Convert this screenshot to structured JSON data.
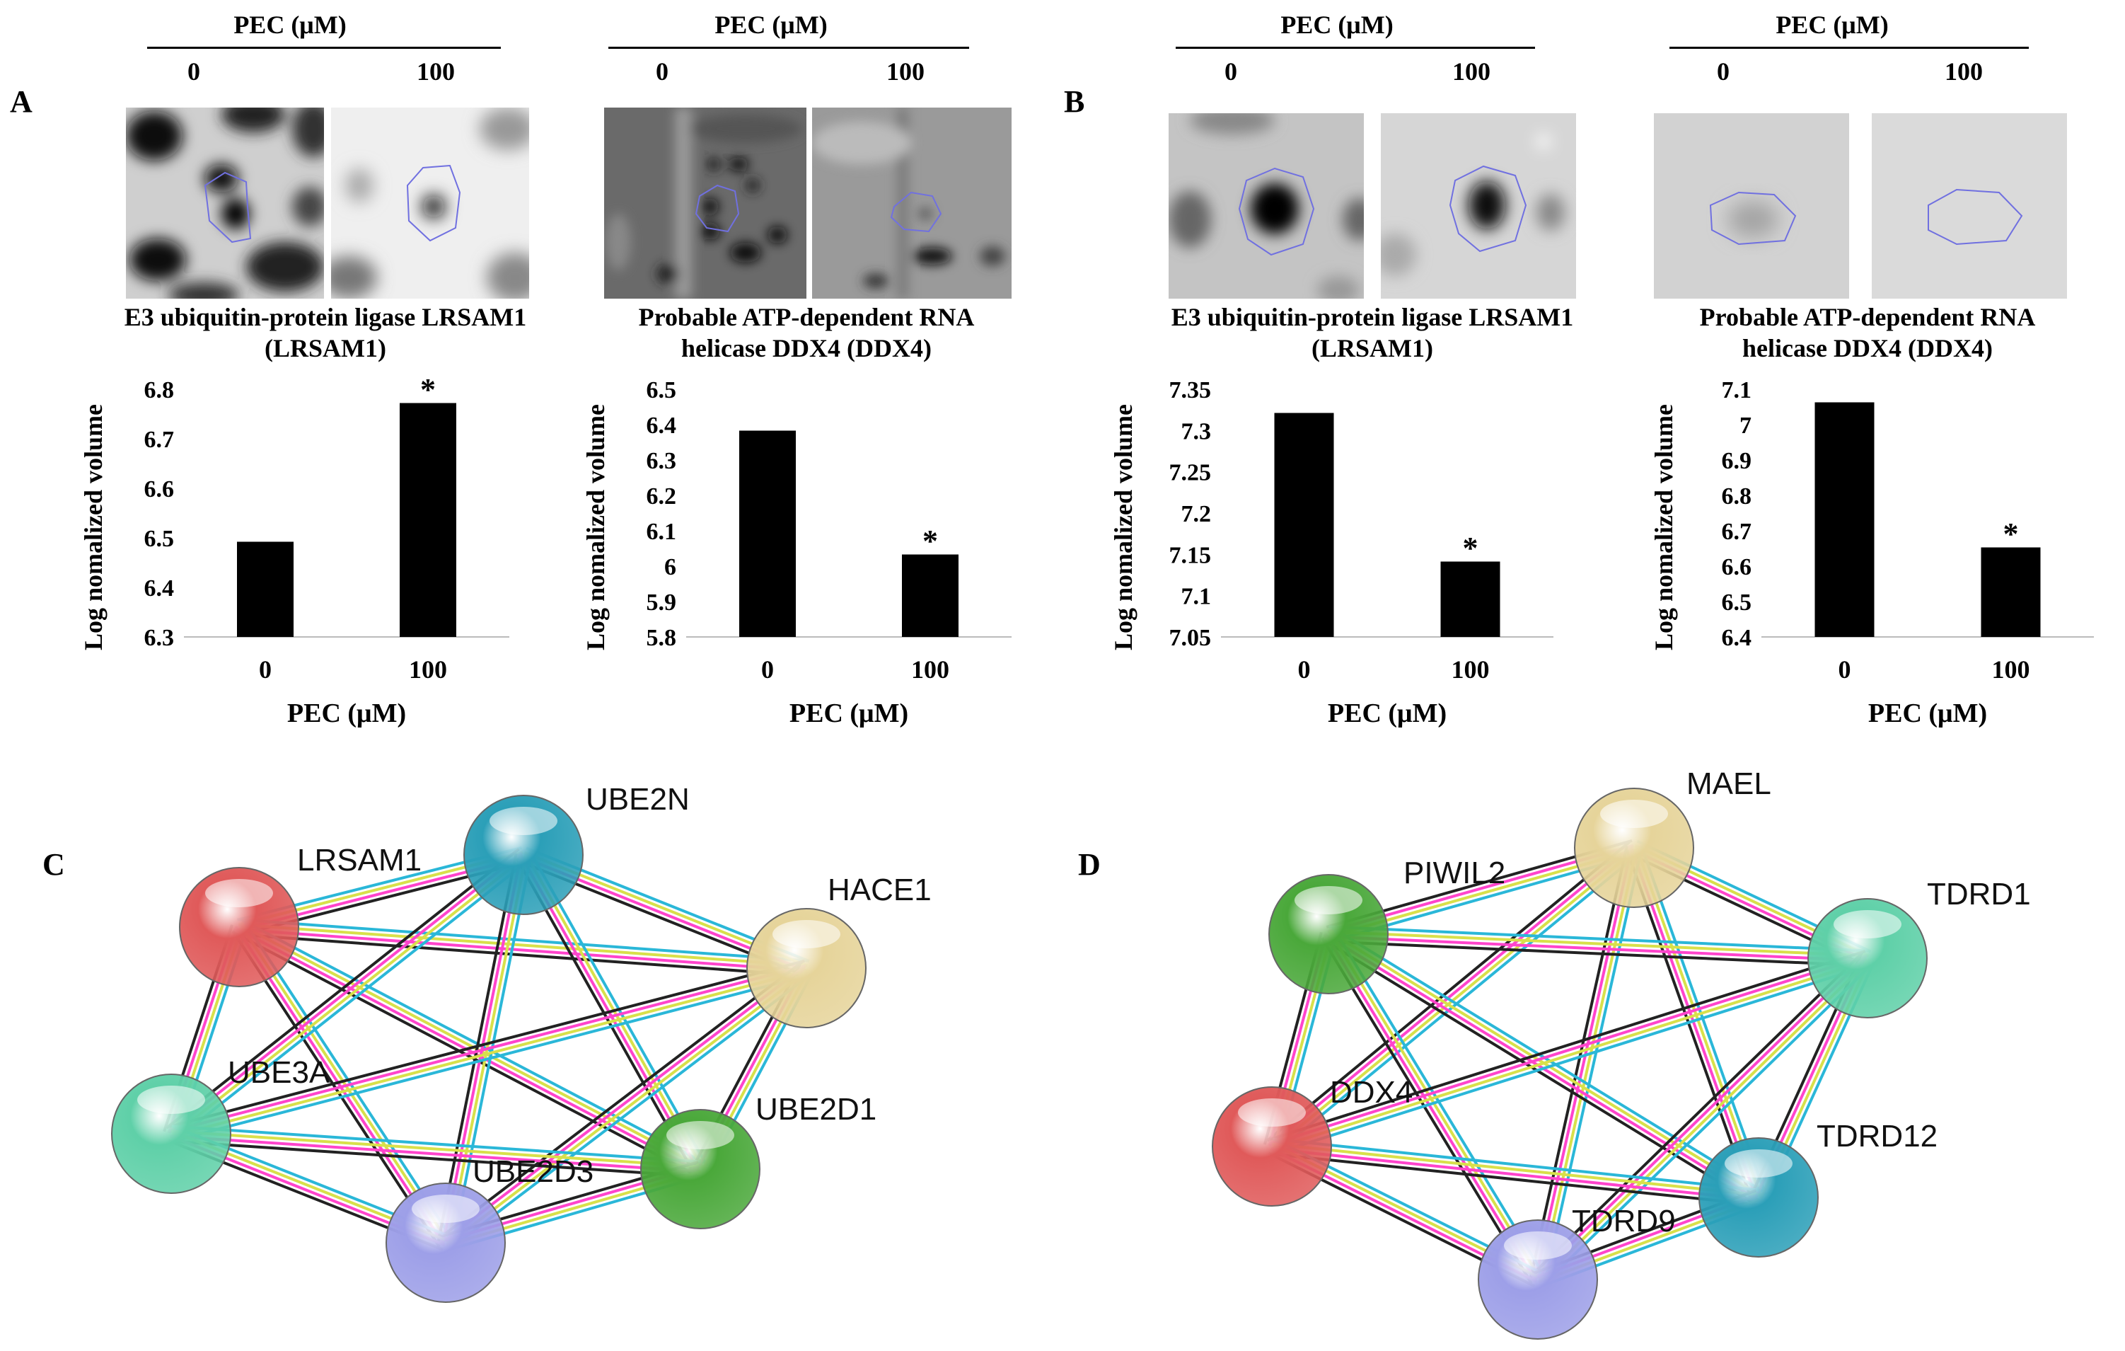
{
  "panels": {
    "A": "A",
    "B": "B",
    "C": "C",
    "D": "D"
  },
  "gel_header": {
    "title": "PEC (μM)",
    "conc_0": "0",
    "conc_100": "100"
  },
  "gel_captions": {
    "lrsam1_line1": "E3 ubiquitin-protein  ligase LRSAM1",
    "lrsam1_line2": "(LRSAM1)",
    "ddx4_line1": "Probable ATP-dependent RNA",
    "ddx4_line2": "helicase DDX4 (DDX4)"
  },
  "colors": {
    "bar": "#000000",
    "node_red": "#e05a5a",
    "node_teal": "#2b9fb8",
    "node_tan": "#e6d49a",
    "node_mint": "#5fd0a8",
    "node_green": "#4aa83a",
    "node_lavender": "#9d9fe8",
    "edge_cyan": "#2ab7d8",
    "edge_magenta": "#ff44cc",
    "edge_yellow": "#d8e04a",
    "edge_black": "#222222",
    "edge_purple": "#9b8cff"
  },
  "chart_data": [
    {
      "type": "bar",
      "panel": "A",
      "categories": [
        "0",
        "100"
      ],
      "values": [
        6.49,
        6.77
      ],
      "significance": [
        "",
        "*"
      ],
      "xlabel": "PEC (μM)",
      "ylabel": "Log nomalized volume",
      "ylim": [
        6.3,
        6.8
      ],
      "yticks": [
        "6.3",
        "6.4",
        "6.5",
        "6.6",
        "6.7",
        "6.8"
      ]
    },
    {
      "type": "bar",
      "panel": "A",
      "categories": [
        "0",
        "100"
      ],
      "values": [
        6.38,
        6.03
      ],
      "significance": [
        "",
        "*"
      ],
      "xlabel": "PEC (μM)",
      "ylabel": "Log nomalized volume",
      "ylim": [
        5.8,
        6.5
      ],
      "yticks": [
        "5.8",
        "5.9",
        "6",
        "6.1",
        "6.2",
        "6.3",
        "6.4",
        "6.5"
      ]
    },
    {
      "type": "bar",
      "panel": "B",
      "categories": [
        "0",
        "100"
      ],
      "values": [
        7.32,
        7.14
      ],
      "significance": [
        "",
        "*"
      ],
      "xlabel": "PEC (μM)",
      "ylabel": "Log nomalized volume",
      "ylim": [
        7.05,
        7.35
      ],
      "yticks": [
        "7.05",
        "7.1",
        "7.15",
        "7.2",
        "7.25",
        "7.3",
        "7.35"
      ]
    },
    {
      "type": "bar",
      "panel": "B",
      "categories": [
        "0",
        "100"
      ],
      "values": [
        7.06,
        6.65
      ],
      "significance": [
        "",
        "*"
      ],
      "xlabel": "PEC (μM)",
      "ylabel": "Log nomalized volume",
      "ylim": [
        6.4,
        7.1
      ],
      "yticks": [
        "6.4",
        "6.5",
        "6.6",
        "6.7",
        "6.8",
        "6.9",
        "7",
        "7.1"
      ]
    }
  ],
  "networks": [
    {
      "panel": "C",
      "nodes": [
        {
          "id": "LRSAM1",
          "label": "LRSAM1",
          "color": "#e05a5a"
        },
        {
          "id": "UBE2N",
          "label": "UBE2N",
          "color": "#2b9fb8"
        },
        {
          "id": "HACE1",
          "label": "HACE1",
          "color": "#e6d49a"
        },
        {
          "id": "UBE3A",
          "label": "UBE3A",
          "color": "#5fd0a8"
        },
        {
          "id": "UBE2D1",
          "label": "UBE2D1",
          "color": "#4aa83a"
        },
        {
          "id": "UBE2D3",
          "label": "UBE2D3",
          "color": "#9d9fe8"
        }
      ]
    },
    {
      "panel": "D",
      "nodes": [
        {
          "id": "MAEL",
          "label": "MAEL",
          "color": "#e6d49a"
        },
        {
          "id": "PIWIL2",
          "label": "PIWIL2",
          "color": "#4aa83a"
        },
        {
          "id": "TDRD1",
          "label": "TDRD1",
          "color": "#5fd0a8"
        },
        {
          "id": "DDX4",
          "label": "DDX4",
          "color": "#e05a5a"
        },
        {
          "id": "TDRD12",
          "label": "TDRD12",
          "color": "#2b9fb8"
        },
        {
          "id": "TDRD9",
          "label": "TDRD9",
          "color": "#9d9fe8"
        }
      ]
    }
  ]
}
